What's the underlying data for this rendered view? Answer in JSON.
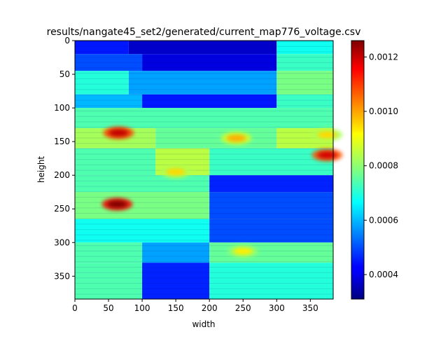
{
  "chart_data": {
    "type": "heatmap",
    "title": "results/nangate45_set2/generated/current_map776_voltage.csv",
    "xlabel": "width",
    "ylabel": "height",
    "xlim": [
      0,
      384
    ],
    "ylim": [
      384,
      0
    ],
    "x_ticks": [
      0,
      50,
      100,
      150,
      200,
      250,
      300,
      350
    ],
    "y_ticks": [
      0,
      50,
      100,
      150,
      200,
      250,
      300,
      350
    ],
    "colormap": "jet",
    "colorbar": {
      "vmin": 0.00031,
      "vmax": 0.00126,
      "ticks": [
        0.0004,
        0.0006,
        0.0008,
        0.001,
        0.0012
      ],
      "tick_labels": [
        "0.0004",
        "0.0006",
        "0.0008",
        "0.0010",
        "0.0012"
      ]
    },
    "bands": [
      {
        "y0": 0,
        "y1": 20,
        "segments": [
          [
            0,
            80,
            0.00045
          ],
          [
            80,
            300,
            0.00038
          ],
          [
            300,
            384,
            0.00068
          ]
        ]
      },
      {
        "y0": 20,
        "y1": 45,
        "segments": [
          [
            0,
            100,
            0.0005
          ],
          [
            100,
            300,
            0.0004
          ],
          [
            300,
            384,
            0.00072
          ]
        ]
      },
      {
        "y0": 45,
        "y1": 80,
        "segments": [
          [
            0,
            80,
            0.0007
          ],
          [
            80,
            300,
            0.00058
          ],
          [
            300,
            384,
            0.00078
          ]
        ]
      },
      {
        "y0": 80,
        "y1": 100,
        "segments": [
          [
            0,
            100,
            0.0006
          ],
          [
            100,
            300,
            0.00045
          ],
          [
            300,
            384,
            0.00072
          ]
        ]
      },
      {
        "y0": 100,
        "y1": 130,
        "segments": [
          [
            0,
            384,
            0.00074
          ]
        ]
      },
      {
        "y0": 130,
        "y1": 160,
        "segments": [
          [
            0,
            120,
            0.00082
          ],
          [
            120,
            300,
            0.00076
          ],
          [
            300,
            384,
            0.00084
          ]
        ]
      },
      {
        "y0": 160,
        "y1": 200,
        "segments": [
          [
            0,
            120,
            0.00074
          ],
          [
            120,
            200,
            0.00084
          ],
          [
            200,
            384,
            0.00072
          ]
        ]
      },
      {
        "y0": 200,
        "y1": 225,
        "segments": [
          [
            0,
            200,
            0.00074
          ],
          [
            200,
            384,
            0.00046
          ]
        ]
      },
      {
        "y0": 225,
        "y1": 265,
        "segments": [
          [
            0,
            200,
            0.00078
          ],
          [
            200,
            384,
            0.0005
          ]
        ]
      },
      {
        "y0": 265,
        "y1": 300,
        "segments": [
          [
            0,
            200,
            0.00068
          ],
          [
            200,
            384,
            0.0005
          ]
        ]
      },
      {
        "y0": 300,
        "y1": 330,
        "segments": [
          [
            0,
            100,
            0.00074
          ],
          [
            100,
            200,
            0.00058
          ],
          [
            200,
            384,
            0.00076
          ]
        ]
      },
      {
        "y0": 330,
        "y1": 384,
        "segments": [
          [
            0,
            100,
            0.00074
          ],
          [
            100,
            200,
            0.00046
          ],
          [
            200,
            384,
            0.0007
          ]
        ]
      }
    ],
    "hotspots": [
      {
        "x": 65,
        "y": 137,
        "value": 0.0012
      },
      {
        "x": 63,
        "y": 243,
        "value": 0.00126
      },
      {
        "x": 375,
        "y": 170,
        "value": 0.00118
      },
      {
        "x": 240,
        "y": 145,
        "value": 0.00098
      },
      {
        "x": 150,
        "y": 195,
        "value": 0.00094
      },
      {
        "x": 250,
        "y": 313,
        "value": 0.00092
      },
      {
        "x": 375,
        "y": 140,
        "value": 0.00094
      }
    ]
  }
}
